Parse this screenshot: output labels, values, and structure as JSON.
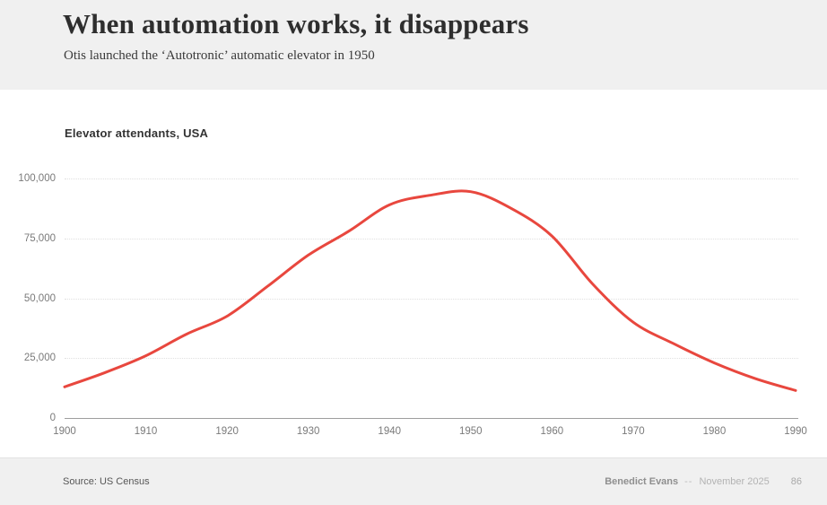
{
  "header": {
    "title": "When automation works, it disappears",
    "subtitle": "Otis launched the ‘Autotronic’ automatic elevator in 1950"
  },
  "chart": {
    "label": "Elevator attendants, USA"
  },
  "chart_data": {
    "type": "line",
    "title": "Elevator attendants, USA",
    "series": [
      {
        "name": "Elevator attendants",
        "x": [
          1900,
          1905,
          1910,
          1915,
          1920,
          1925,
          1930,
          1935,
          1940,
          1945,
          1950,
          1955,
          1960,
          1965,
          1970,
          1975,
          1980,
          1985,
          1990
        ],
        "values": [
          13000,
          19000,
          26000,
          35000,
          42500,
          55000,
          68000,
          78000,
          89000,
          93000,
          94500,
          87500,
          76000,
          56000,
          40000,
          31000,
          23000,
          16500,
          11500
        ],
        "color": "#e8473e"
      }
    ],
    "xlim": [
      1900,
      1990
    ],
    "ylim": [
      0,
      100000
    ],
    "x_ticks": [
      "1900",
      "1910",
      "1920",
      "1930",
      "1940",
      "1950",
      "1960",
      "1970",
      "1980",
      "1990"
    ],
    "y_ticks": [
      0,
      25000,
      50000,
      75000,
      100000
    ],
    "y_tick_labels": [
      "0",
      "25,000",
      "50,000",
      "75,000",
      "100,000"
    ],
    "xlabel": "",
    "ylabel": "",
    "grid": "horizontal-dotted",
    "legend": "none"
  },
  "footer": {
    "source": "Source: US Census",
    "author": "Benedict Evans",
    "separator": "--",
    "date": "November 2025",
    "page_number": "86"
  },
  "colors": {
    "accent_line": "#e8473e",
    "header_bg": "#f0f0f0",
    "footer_bg": "#f0f0f0",
    "gridline": "#e0e0e0",
    "zero_axis": "#9e9e9e",
    "text_dark": "#2e2e2e",
    "text_muted": "#7a7a7a"
  }
}
